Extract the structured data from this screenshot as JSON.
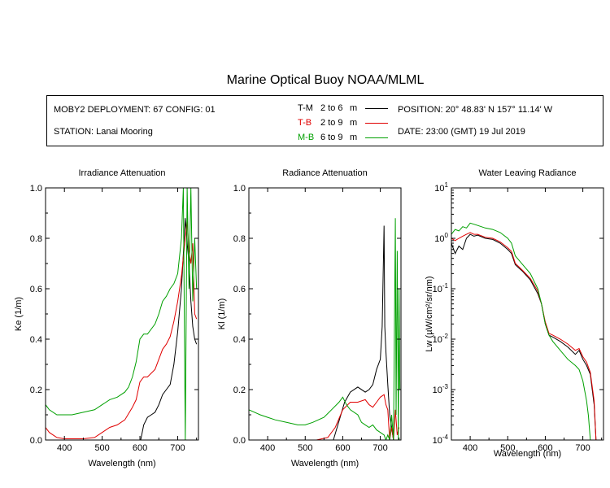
{
  "header": {
    "title": "Marine Optical Buoy NOAA/MLML",
    "deployment": "MOBY2 DEPLOYMENT: 67 CONFIG: 01",
    "station": "STATION: Lanai Mooring",
    "position": "POSITION: 20° 48.83' N   157° 11.14' W",
    "date": "DATE: 23:00 (GMT) 19 Jul 2019"
  },
  "legend": [
    {
      "code": "T-M",
      "range": "2 to 6",
      "unit": "m",
      "color": "#000000"
    },
    {
      "code": "T-B",
      "range": "2 to 9",
      "unit": "m",
      "color": "#e00000"
    },
    {
      "code": "M-B",
      "range": "6 to 9",
      "unit": "m",
      "color": "#00a000"
    }
  ],
  "chart_data": [
    {
      "type": "line",
      "title": "Irradiance Attenuation",
      "xlabel": "Wavelength (nm)",
      "ylabel": "Ke  (1/m)",
      "xlim": [
        350,
        755
      ],
      "ylim": [
        0,
        1
      ],
      "xticks": [
        400,
        500,
        600,
        700
      ],
      "yticks": [
        "0.0",
        "0.2",
        "0.4",
        "0.6",
        "0.8",
        "1.0"
      ],
      "series": [
        {
          "name": "T-M",
          "color": "#000000",
          "x": [
            602,
            610,
            620,
            630,
            640,
            650,
            660,
            670,
            680,
            690,
            700,
            710,
            720,
            725,
            730,
            735,
            740,
            745,
            750
          ],
          "y": [
            0.0,
            0.06,
            0.09,
            0.1,
            0.11,
            0.14,
            0.18,
            0.2,
            0.22,
            0.3,
            0.43,
            0.6,
            0.88,
            0.78,
            0.7,
            0.55,
            0.45,
            0.4,
            0.38
          ]
        },
        {
          "name": "T-B",
          "color": "#e00000",
          "x": [
            350,
            360,
            380,
            400,
            420,
            450,
            480,
            500,
            520,
            540,
            560,
            580,
            590,
            600,
            610,
            620,
            640,
            660,
            670,
            680,
            690,
            700,
            710,
            720,
            725,
            730,
            735,
            740,
            745,
            750
          ],
          "y": [
            0.05,
            0.03,
            0.01,
            0.005,
            0.005,
            0.005,
            0.01,
            0.03,
            0.05,
            0.06,
            0.08,
            0.13,
            0.16,
            0.23,
            0.25,
            0.25,
            0.28,
            0.36,
            0.38,
            0.41,
            0.47,
            0.55,
            0.65,
            0.8,
            0.87,
            0.75,
            0.7,
            0.78,
            0.5,
            0.48
          ]
        },
        {
          "name": "M-B",
          "color": "#00a000",
          "x": [
            350,
            360,
            380,
            400,
            420,
            450,
            480,
            500,
            520,
            540,
            560,
            570,
            580,
            590,
            600,
            610,
            620,
            640,
            650,
            660,
            670,
            680,
            690,
            700,
            710,
            715,
            720,
            725,
            730,
            735,
            740,
            745,
            750
          ],
          "y": [
            0.14,
            0.12,
            0.1,
            0.1,
            0.1,
            0.11,
            0.12,
            0.14,
            0.16,
            0.17,
            0.19,
            0.21,
            0.25,
            0.31,
            0.4,
            0.42,
            0.42,
            0.46,
            0.5,
            0.55,
            0.57,
            0.6,
            0.62,
            0.66,
            0.8,
            1.0,
            0.0,
            1.0,
            0.6,
            1.0,
            0.55,
            0.8,
            0.6
          ]
        }
      ]
    },
    {
      "type": "line",
      "title": "Radiance Attenuation",
      "xlabel": "Wavelength (nm)",
      "ylabel": "Kl  (1/m)",
      "xlim": [
        350,
        755
      ],
      "ylim": [
        0,
        1
      ],
      "xticks": [
        400,
        500,
        600,
        700
      ],
      "yticks": [
        "0.0",
        "0.2",
        "0.4",
        "0.6",
        "0.8",
        "1.0"
      ],
      "series": [
        {
          "name": "T-M",
          "color": "#000000",
          "x": [
            575,
            585,
            595,
            605,
            620,
            640,
            660,
            670,
            680,
            690,
            700,
            705,
            710,
            712,
            715,
            720,
            725,
            730,
            735,
            740
          ],
          "y": [
            0.0,
            0.05,
            0.1,
            0.15,
            0.19,
            0.21,
            0.19,
            0.2,
            0.22,
            0.28,
            0.32,
            0.45,
            0.85,
            0.45,
            0.35,
            0.22,
            0.1,
            0.05,
            0.0,
            0.0
          ]
        },
        {
          "name": "T-B",
          "color": "#e00000",
          "x": [
            350,
            380,
            420,
            460,
            500,
            530,
            560,
            580,
            600,
            620,
            640,
            660,
            670,
            680,
            690,
            700,
            710,
            715,
            720,
            725,
            730,
            735,
            740,
            745,
            750
          ],
          "y": [
            0.0,
            0.0,
            0.0,
            0.0,
            0.0,
            0.0,
            0.01,
            0.05,
            0.12,
            0.15,
            0.15,
            0.16,
            0.14,
            0.13,
            0.15,
            0.17,
            0.18,
            0.14,
            0.12,
            0.0,
            0.05,
            0.0,
            0.12,
            0.02,
            0.05
          ]
        },
        {
          "name": "M-B",
          "color": "#00a000",
          "x": [
            350,
            380,
            400,
            420,
            450,
            480,
            500,
            520,
            550,
            570,
            590,
            600,
            610,
            620,
            640,
            650,
            660,
            670,
            680,
            690,
            700,
            710,
            715,
            720,
            725,
            730,
            735,
            740,
            742,
            745,
            748,
            750,
            752
          ],
          "y": [
            0.12,
            0.1,
            0.09,
            0.08,
            0.07,
            0.06,
            0.06,
            0.07,
            0.09,
            0.12,
            0.15,
            0.17,
            0.14,
            0.12,
            0.1,
            0.07,
            0.06,
            0.05,
            0.06,
            0.04,
            0.03,
            0.02,
            0.0,
            0.02,
            0.0,
            0.1,
            0.0,
            0.88,
            0.1,
            0.75,
            0.0,
            0.6,
            0.2
          ]
        }
      ]
    },
    {
      "type": "line",
      "title": "Water Leaving Radiance",
      "xlabel": "Wavelength (nm)",
      "ylabel": "Lw  (µW/cm²/sr/nm)",
      "xscale": "log-y",
      "xlim": [
        350,
        755
      ],
      "ylim": [
        0.0001,
        10
      ],
      "xticks": [
        400,
        500,
        600,
        700
      ],
      "yticks": [
        {
          "base": "10",
          "exp": "1",
          "value": 10
        },
        {
          "base": "10",
          "exp": "0",
          "value": 1
        },
        {
          "base": "10",
          "exp": "-1",
          "value": 0.1
        },
        {
          "base": "10",
          "exp": "-2",
          "value": 0.01
        },
        {
          "base": "10",
          "exp": "-3",
          "value": 0.001
        },
        {
          "base": "10",
          "exp": "-4",
          "value": 0.0001
        }
      ],
      "series": [
        {
          "name": "T-M",
          "color": "#000000",
          "x": [
            350,
            360,
            370,
            380,
            390,
            400,
            410,
            420,
            440,
            460,
            480,
            500,
            510,
            520,
            540,
            560,
            580,
            590,
            600,
            610,
            620,
            640,
            660,
            680,
            690,
            700,
            710,
            720,
            730,
            735
          ],
          "y": [
            0.8,
            0.5,
            0.7,
            0.6,
            1.0,
            1.2,
            1.1,
            1.15,
            1.0,
            0.95,
            0.8,
            0.6,
            0.5,
            0.3,
            0.22,
            0.15,
            0.08,
            0.05,
            0.02,
            0.012,
            0.011,
            0.009,
            0.007,
            0.005,
            0.006,
            0.004,
            0.003,
            0.002,
            0.0005,
            0.0001
          ]
        },
        {
          "name": "T-B",
          "color": "#e00000",
          "x": [
            350,
            360,
            370,
            380,
            390,
            400,
            410,
            420,
            440,
            460,
            480,
            500,
            510,
            520,
            540,
            560,
            580,
            590,
            600,
            610,
            620,
            640,
            660,
            680,
            690,
            700,
            710,
            720,
            730,
            735
          ],
          "y": [
            1.0,
            0.9,
            1.0,
            1.1,
            1.2,
            1.3,
            1.2,
            1.2,
            1.05,
            1.0,
            0.85,
            0.65,
            0.55,
            0.32,
            0.23,
            0.16,
            0.09,
            0.05,
            0.022,
            0.013,
            0.012,
            0.01,
            0.008,
            0.006,
            0.0065,
            0.0045,
            0.0035,
            0.0022,
            0.0006,
            0.0001
          ]
        },
        {
          "name": "M-B",
          "color": "#00a000",
          "x": [
            350,
            360,
            370,
            380,
            390,
            400,
            410,
            420,
            440,
            460,
            480,
            500,
            510,
            520,
            540,
            560,
            580,
            590,
            600,
            610,
            620,
            640,
            660,
            680,
            690,
            700,
            710,
            715,
            720
          ],
          "y": [
            1.2,
            1.5,
            1.4,
            1.7,
            1.6,
            2.0,
            1.9,
            1.8,
            1.6,
            1.5,
            1.3,
            1.0,
            0.8,
            0.45,
            0.3,
            0.2,
            0.1,
            0.05,
            0.02,
            0.012,
            0.009,
            0.006,
            0.004,
            0.003,
            0.0025,
            0.0015,
            0.0006,
            0.0003,
            0.0001
          ]
        }
      ]
    }
  ]
}
